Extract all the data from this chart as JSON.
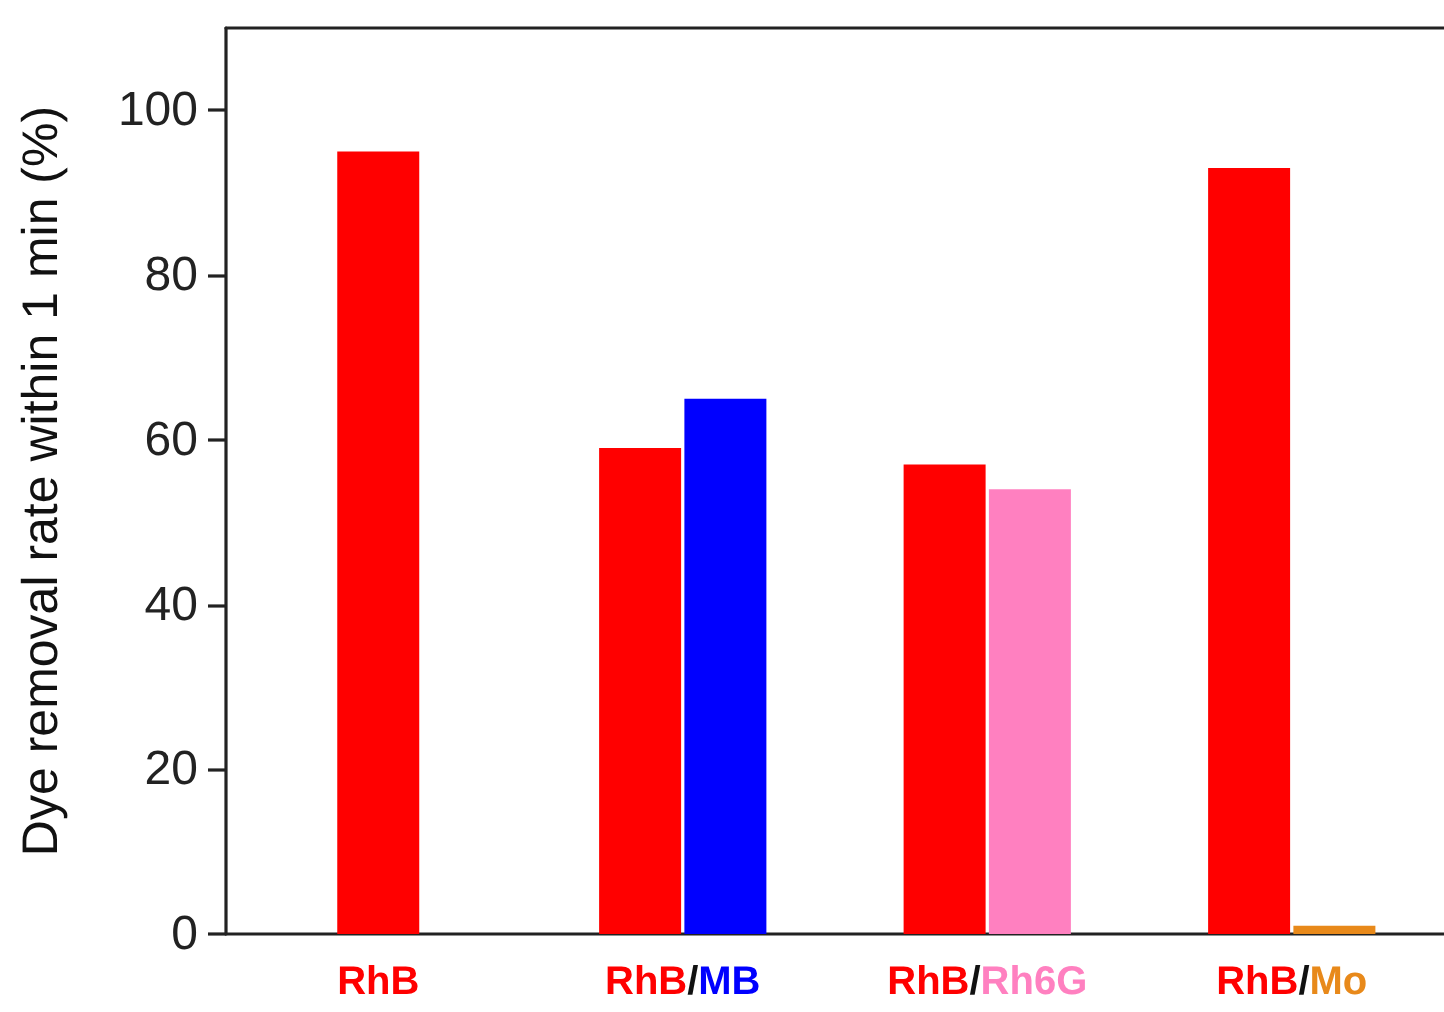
{
  "chart_data": {
    "type": "bar",
    "ylabel": "Dye removal rate within 1 min (%)",
    "categories": [
      "RhB",
      "RhB/MB",
      "RhB/Rh6G",
      "RhB/Mo"
    ],
    "series": [
      {
        "color": "#ff0000",
        "values": [
          95,
          59,
          57,
          93
        ]
      },
      {
        "colors": [
          null,
          "#0000ff",
          "#ff80c0",
          "#e8891a"
        ],
        "values": [
          null,
          65,
          54,
          1
        ]
      }
    ],
    "ylim": [
      0,
      110
    ],
    "yticks": [
      0,
      20,
      40,
      60,
      80,
      100
    ]
  }
}
